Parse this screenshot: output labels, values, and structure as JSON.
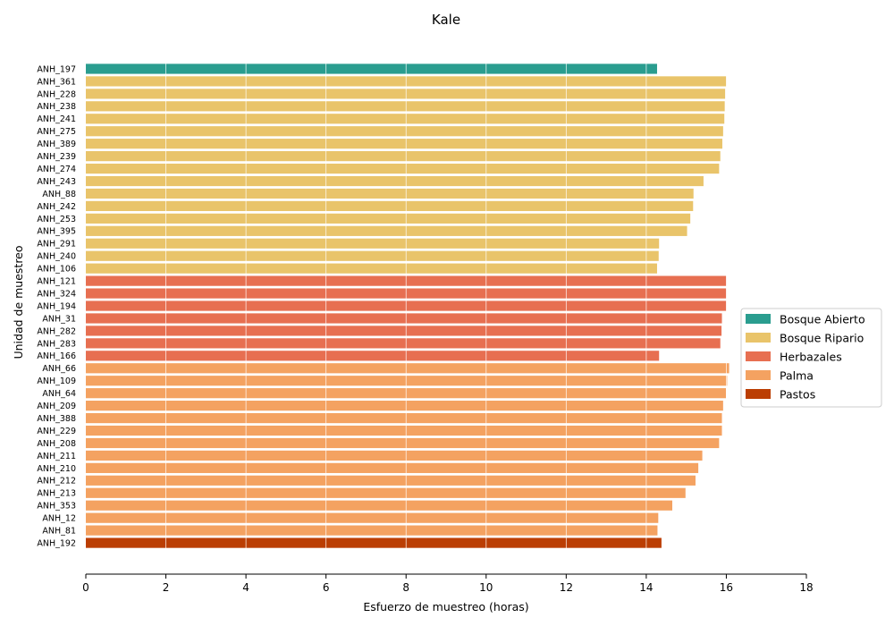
{
  "chart_data": {
    "type": "bar",
    "orientation": "horizontal",
    "title": "Kale",
    "xlabel": "Esfuerzo de muestreo (horas)",
    "ylabel": "Unidad de muestreo",
    "xlim": [
      0,
      18
    ],
    "xticks": [
      0,
      2,
      4,
      6,
      8,
      10,
      12,
      14,
      16,
      18
    ],
    "grid": "vertical",
    "legend_position": "right",
    "groups": [
      {
        "name": "Bosque Abierto",
        "color": "#2a9d8f"
      },
      {
        "name": "Bosque Ripario",
        "color": "#e9c46a"
      },
      {
        "name": "Herbazales",
        "color": "#e76f51"
      },
      {
        "name": "Palma",
        "color": "#f4a261"
      },
      {
        "name": "Pastos",
        "color": "#bb3e03"
      }
    ],
    "bars": [
      {
        "label": "ANH_197",
        "value": 14.27,
        "group": 0
      },
      {
        "label": "ANH_361",
        "value": 16.0,
        "group": 1
      },
      {
        "label": "ANH_228",
        "value": 15.97,
        "group": 1
      },
      {
        "label": "ANH_238",
        "value": 15.96,
        "group": 1
      },
      {
        "label": "ANH_241",
        "value": 15.95,
        "group": 1
      },
      {
        "label": "ANH_275",
        "value": 15.92,
        "group": 1
      },
      {
        "label": "ANH_389",
        "value": 15.9,
        "group": 1
      },
      {
        "label": "ANH_239",
        "value": 15.85,
        "group": 1
      },
      {
        "label": "ANH_274",
        "value": 15.82,
        "group": 1
      },
      {
        "label": "ANH_243",
        "value": 15.43,
        "group": 1
      },
      {
        "label": "ANH_88",
        "value": 15.18,
        "group": 1
      },
      {
        "label": "ANH_242",
        "value": 15.17,
        "group": 1
      },
      {
        "label": "ANH_253",
        "value": 15.1,
        "group": 1
      },
      {
        "label": "ANH_395",
        "value": 15.02,
        "group": 1
      },
      {
        "label": "ANH_291",
        "value": 14.32,
        "group": 1
      },
      {
        "label": "ANH_240",
        "value": 14.31,
        "group": 1
      },
      {
        "label": "ANH_106",
        "value": 14.27,
        "group": 1
      },
      {
        "label": "ANH_121",
        "value": 16.0,
        "group": 2
      },
      {
        "label": "ANH_324",
        "value": 16.0,
        "group": 2
      },
      {
        "label": "ANH_194",
        "value": 16.0,
        "group": 2
      },
      {
        "label": "ANH_31",
        "value": 15.89,
        "group": 2
      },
      {
        "label": "ANH_282",
        "value": 15.88,
        "group": 2
      },
      {
        "label": "ANH_283",
        "value": 15.85,
        "group": 2
      },
      {
        "label": "ANH_166",
        "value": 14.32,
        "group": 2
      },
      {
        "label": "ANH_66",
        "value": 16.07,
        "group": 3
      },
      {
        "label": "ANH_109",
        "value": 16.02,
        "group": 3
      },
      {
        "label": "ANH_64",
        "value": 15.99,
        "group": 3
      },
      {
        "label": "ANH_209",
        "value": 15.92,
        "group": 3
      },
      {
        "label": "ANH_388",
        "value": 15.89,
        "group": 3
      },
      {
        "label": "ANH_229",
        "value": 15.89,
        "group": 3
      },
      {
        "label": "ANH_208",
        "value": 15.82,
        "group": 3
      },
      {
        "label": "ANH_211",
        "value": 15.4,
        "group": 3
      },
      {
        "label": "ANH_210",
        "value": 15.3,
        "group": 3
      },
      {
        "label": "ANH_212",
        "value": 15.23,
        "group": 3
      },
      {
        "label": "ANH_213",
        "value": 14.98,
        "group": 3
      },
      {
        "label": "ANH_353",
        "value": 14.65,
        "group": 3
      },
      {
        "label": "ANH_12",
        "value": 14.3,
        "group": 3
      },
      {
        "label": "ANH_81",
        "value": 14.28,
        "group": 3
      },
      {
        "label": "ANH_192",
        "value": 14.38,
        "group": 4
      }
    ]
  }
}
